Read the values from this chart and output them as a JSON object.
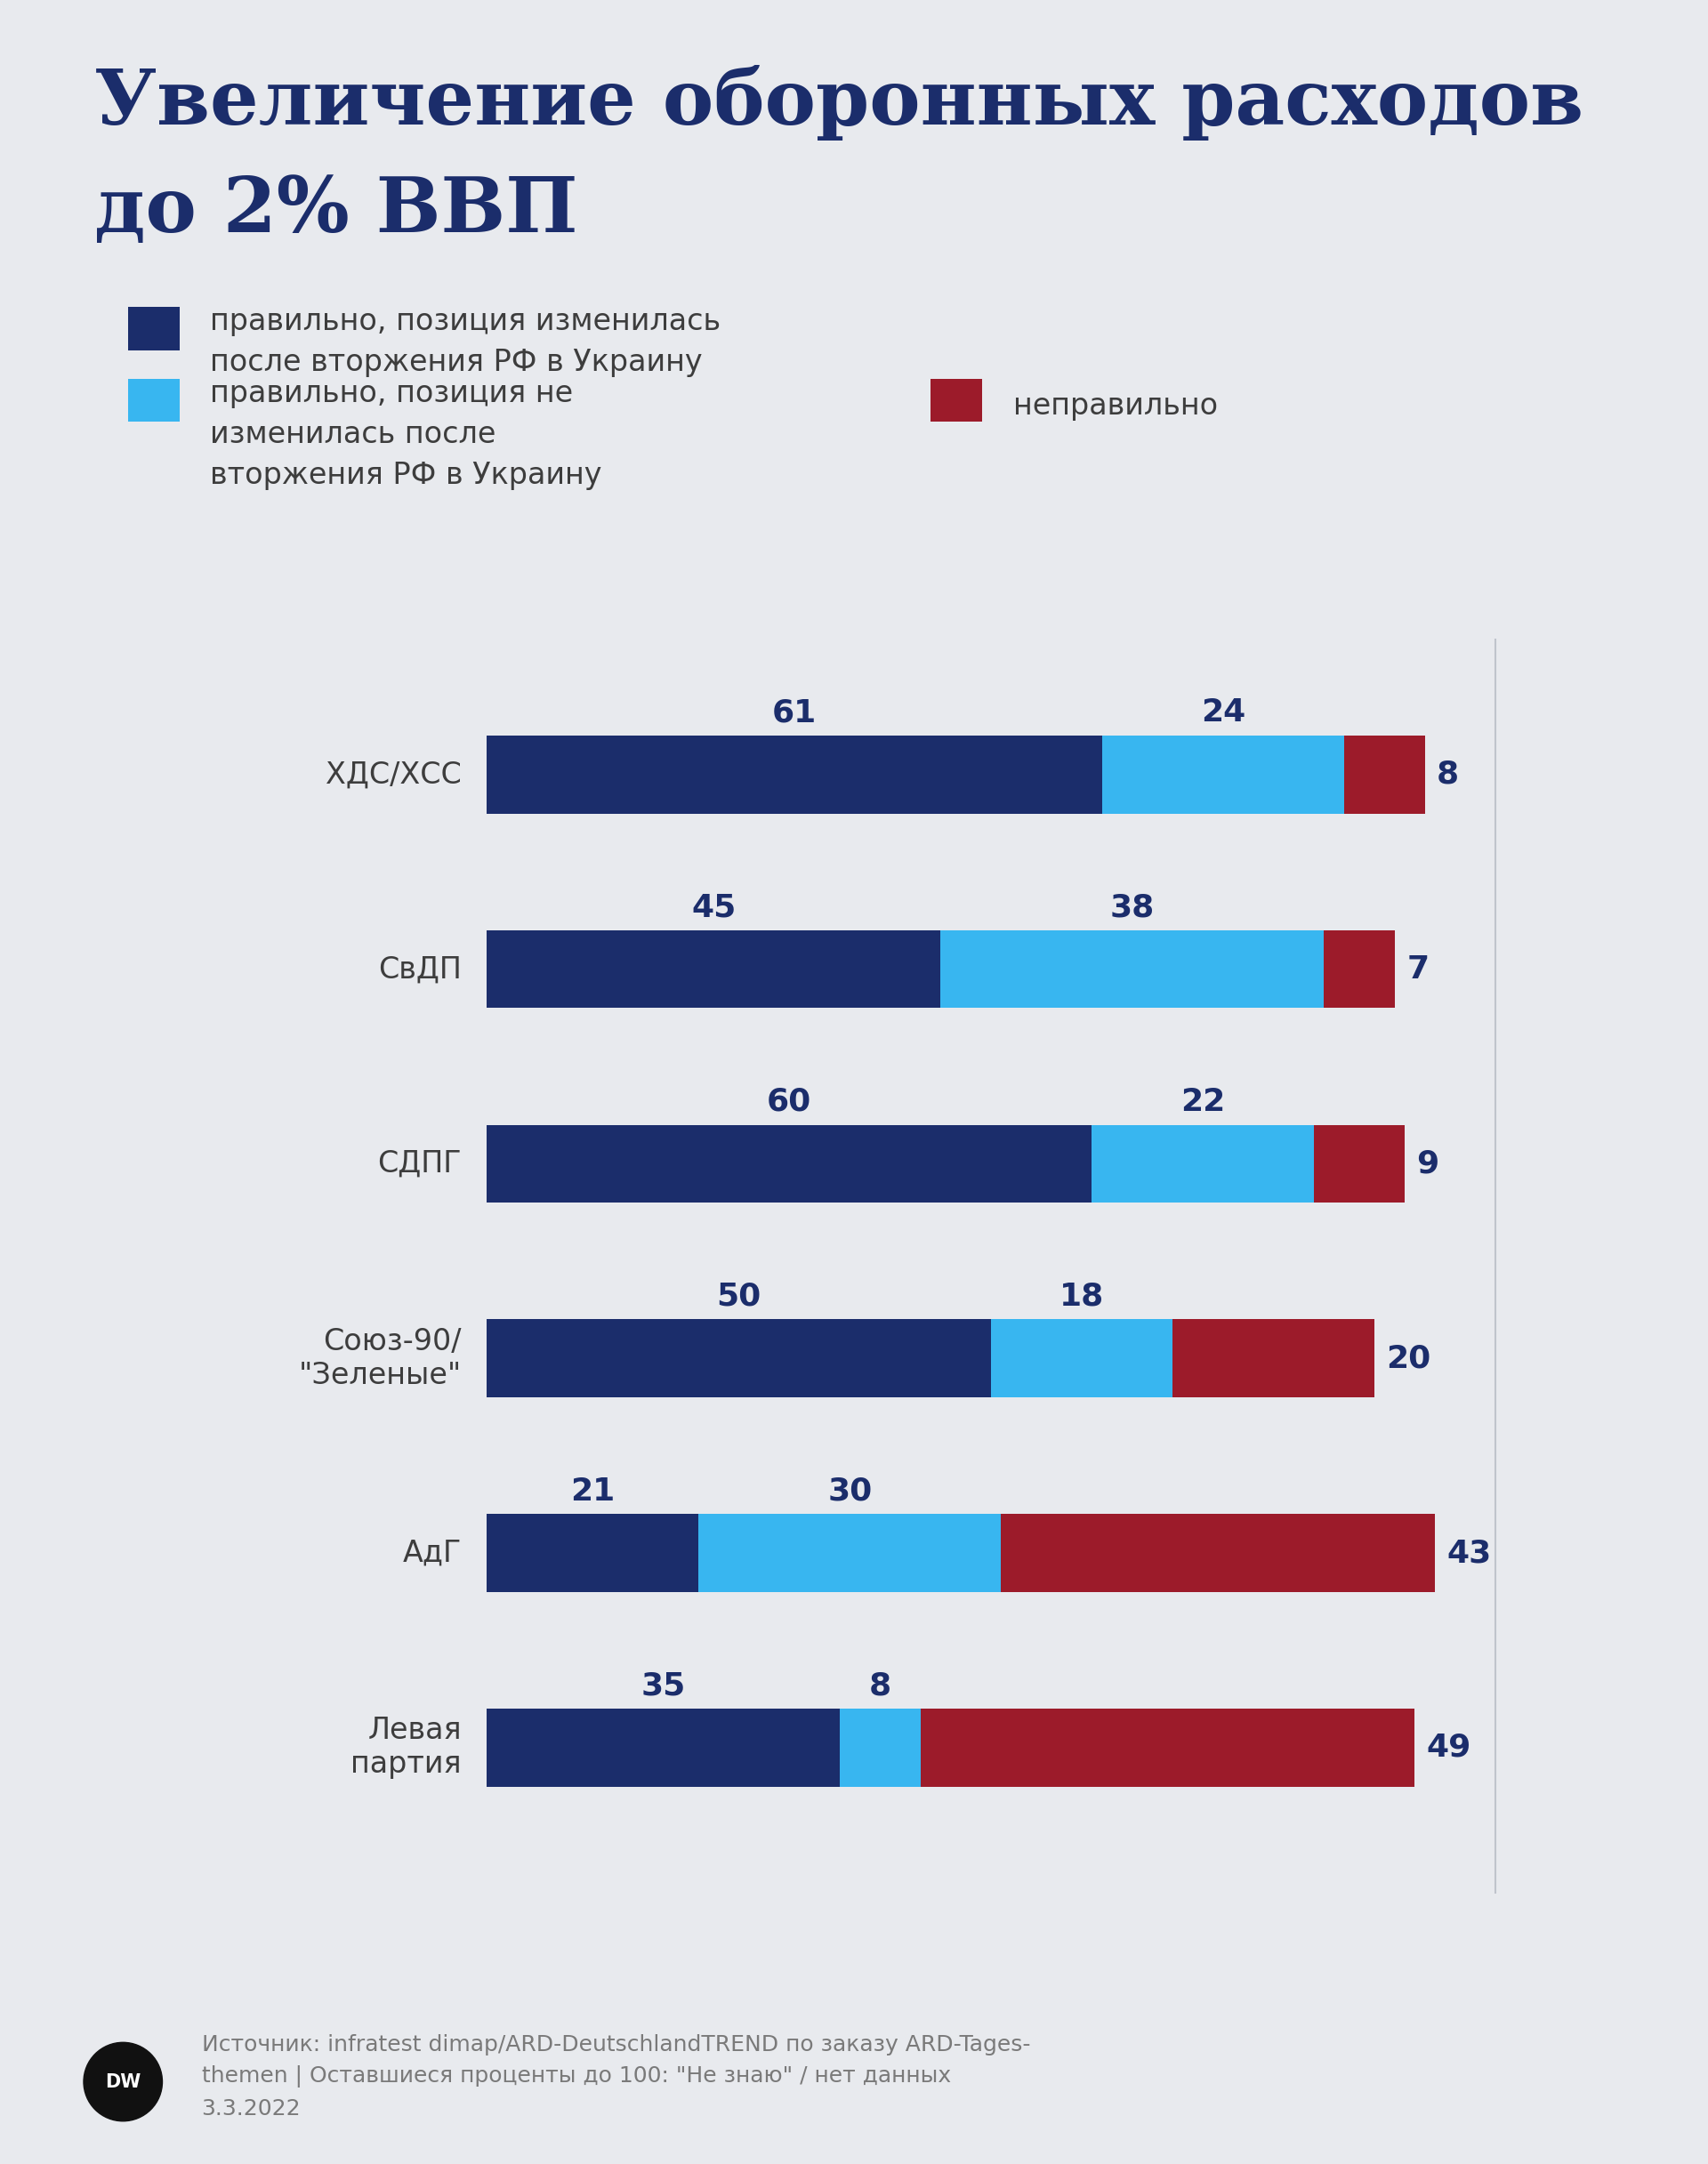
{
  "title_line1": "Увеличение оборонных расходов",
  "title_line2": "до 2% ВВП",
  "title_color": "#1b2d6b",
  "background_color": "#e8eaee",
  "legend1_color": "#1b2d6b",
  "legend1_text": "правильно, позиция изменилась\nпосле вторжения РФ в Украину",
  "legend2_color": "#38b6f0",
  "legend2_text": "правильно, позиция не\nизменилась после\nвторжения РФ в Украину",
  "legend3_color": "#9c1b2a",
  "legend3_text": "неправильно",
  "parties": [
    "ХДС/ХСС",
    "СвДП",
    "СДПГ",
    "Союз-90/\n\"Зеленые\"",
    "АдГ",
    "Левая\nпартия"
  ],
  "dark_blue": [
    61,
    45,
    60,
    50,
    21,
    35
  ],
  "light_blue": [
    24,
    38,
    22,
    18,
    30,
    8
  ],
  "red": [
    8,
    7,
    9,
    20,
    43,
    49
  ],
  "dark_blue_color": "#1b2d6b",
  "light_blue_color": "#38b6f0",
  "red_color": "#9c1b2a",
  "source_text": "Источник: infratest dimap/ARD-DeutschlandTREND по заказу ARD-Tages-\nthemen | Оставшиеся проценты до 100: \"Не знаю\" / нет данных\n3.3.2022"
}
